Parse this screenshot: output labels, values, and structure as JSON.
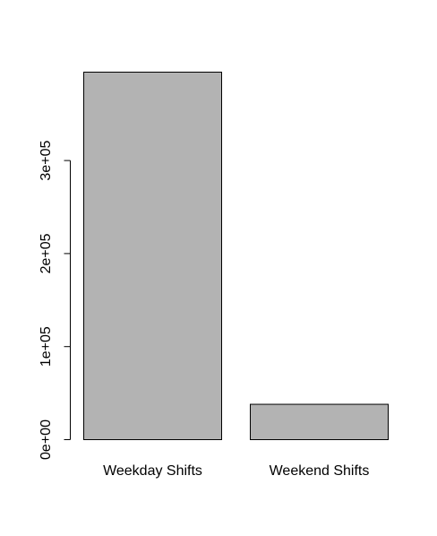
{
  "chart_data": {
    "type": "bar",
    "categories": [
      "Weekday Shifts",
      "Weekend Shifts"
    ],
    "values": [
      395000,
      38000
    ],
    "title": "",
    "xlabel": "",
    "ylabel": "",
    "ylim": [
      0,
      400000
    ],
    "y_ticks": [
      0,
      100000,
      200000,
      300000
    ],
    "y_tick_labels": [
      "0e+00",
      "1e+05",
      "2e+05",
      "3e+05"
    ],
    "grid": false,
    "bar_fill": "#b3b3b3",
    "bar_stroke": "#000000"
  }
}
